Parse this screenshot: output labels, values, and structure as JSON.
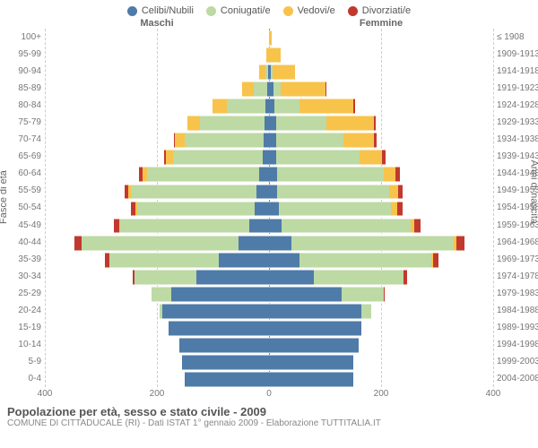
{
  "chart": {
    "type": "population-pyramid",
    "background_color": "#ffffff",
    "grid_color": "#cccccc",
    "xlim": 400,
    "xticks_left": [
      400,
      200,
      0
    ],
    "xticks_right": [
      200,
      400
    ],
    "left_label": "Maschi",
    "right_label": "Femmine",
    "yaxis_left_title": "Fasce di età",
    "yaxis_right_title": "Anni di nascita",
    "legend": [
      {
        "label": "Celibi/Nubili",
        "color": "#4f7ba8"
      },
      {
        "label": "Coniugati/e",
        "color": "#bdd9a4"
      },
      {
        "label": "Vedovi/e",
        "color": "#f7c34b"
      },
      {
        "label": "Divorziati/e",
        "color": "#c1392e"
      }
    ],
    "age_groups": [
      {
        "age": "100+",
        "birth": "≤ 1908",
        "m": {
          "c": 0,
          "co": 0,
          "v": 0,
          "d": 0
        },
        "f": {
          "c": 0,
          "co": 0,
          "v": 4,
          "d": 0
        }
      },
      {
        "age": "95-99",
        "birth": "1909-1913",
        "m": {
          "c": 0,
          "co": 0,
          "v": 5,
          "d": 0
        },
        "f": {
          "c": 0,
          "co": 0,
          "v": 20,
          "d": 0
        }
      },
      {
        "age": "90-94",
        "birth": "1914-1918",
        "m": {
          "c": 2,
          "co": 5,
          "v": 10,
          "d": 0
        },
        "f": {
          "c": 3,
          "co": 3,
          "v": 40,
          "d": 0
        }
      },
      {
        "age": "85-89",
        "birth": "1919-1923",
        "m": {
          "c": 3,
          "co": 25,
          "v": 20,
          "d": 0
        },
        "f": {
          "c": 8,
          "co": 12,
          "v": 80,
          "d": 2
        }
      },
      {
        "age": "80-84",
        "birth": "1924-1928",
        "m": {
          "c": 6,
          "co": 70,
          "v": 25,
          "d": 0
        },
        "f": {
          "c": 10,
          "co": 45,
          "v": 95,
          "d": 3
        }
      },
      {
        "age": "75-79",
        "birth": "1929-1933",
        "m": {
          "c": 8,
          "co": 115,
          "v": 22,
          "d": 0
        },
        "f": {
          "c": 12,
          "co": 90,
          "v": 85,
          "d": 3
        }
      },
      {
        "age": "70-74",
        "birth": "1934-1938",
        "m": {
          "c": 10,
          "co": 140,
          "v": 18,
          "d": 2
        },
        "f": {
          "c": 12,
          "co": 120,
          "v": 55,
          "d": 5
        }
      },
      {
        "age": "65-69",
        "birth": "1939-1943",
        "m": {
          "c": 12,
          "co": 160,
          "v": 12,
          "d": 4
        },
        "f": {
          "c": 12,
          "co": 150,
          "v": 40,
          "d": 6
        }
      },
      {
        "age": "60-64",
        "birth": "1944-1948",
        "m": {
          "c": 18,
          "co": 200,
          "v": 8,
          "d": 6
        },
        "f": {
          "c": 14,
          "co": 190,
          "v": 22,
          "d": 8
        }
      },
      {
        "age": "55-59",
        "birth": "1949-1953",
        "m": {
          "c": 22,
          "co": 225,
          "v": 5,
          "d": 6
        },
        "f": {
          "c": 15,
          "co": 200,
          "v": 15,
          "d": 8
        }
      },
      {
        "age": "50-54",
        "birth": "1954-1958",
        "m": {
          "c": 25,
          "co": 210,
          "v": 3,
          "d": 8
        },
        "f": {
          "c": 18,
          "co": 200,
          "v": 10,
          "d": 10
        }
      },
      {
        "age": "45-49",
        "birth": "1959-1963",
        "m": {
          "c": 35,
          "co": 230,
          "v": 2,
          "d": 10
        },
        "f": {
          "c": 22,
          "co": 230,
          "v": 7,
          "d": 12
        }
      },
      {
        "age": "40-44",
        "birth": "1964-1968",
        "m": {
          "c": 55,
          "co": 280,
          "v": 0,
          "d": 12
        },
        "f": {
          "c": 40,
          "co": 290,
          "v": 5,
          "d": 14
        }
      },
      {
        "age": "35-39",
        "birth": "1969-1973",
        "m": {
          "c": 90,
          "co": 195,
          "v": 0,
          "d": 8
        },
        "f": {
          "c": 55,
          "co": 235,
          "v": 2,
          "d": 10
        }
      },
      {
        "age": "30-34",
        "birth": "1974-1978",
        "m": {
          "c": 130,
          "co": 110,
          "v": 0,
          "d": 4
        },
        "f": {
          "c": 80,
          "co": 160,
          "v": 0,
          "d": 6
        }
      },
      {
        "age": "25-29",
        "birth": "1979-1983",
        "m": {
          "c": 175,
          "co": 35,
          "v": 0,
          "d": 0
        },
        "f": {
          "c": 130,
          "co": 75,
          "v": 0,
          "d": 2
        }
      },
      {
        "age": "20-24",
        "birth": "1984-1988",
        "m": {
          "c": 190,
          "co": 5,
          "v": 0,
          "d": 0
        },
        "f": {
          "c": 165,
          "co": 18,
          "v": 0,
          "d": 0
        }
      },
      {
        "age": "15-19",
        "birth": "1989-1993",
        "m": {
          "c": 180,
          "co": 0,
          "v": 0,
          "d": 0
        },
        "f": {
          "c": 165,
          "co": 0,
          "v": 0,
          "d": 0
        }
      },
      {
        "age": "10-14",
        "birth": "1994-1998",
        "m": {
          "c": 160,
          "co": 0,
          "v": 0,
          "d": 0
        },
        "f": {
          "c": 160,
          "co": 0,
          "v": 0,
          "d": 0
        }
      },
      {
        "age": "5-9",
        "birth": "1999-2003",
        "m": {
          "c": 155,
          "co": 0,
          "v": 0,
          "d": 0
        },
        "f": {
          "c": 150,
          "co": 0,
          "v": 0,
          "d": 0
        }
      },
      {
        "age": "0-4",
        "birth": "2004-2008",
        "m": {
          "c": 150,
          "co": 0,
          "v": 0,
          "d": 0
        },
        "f": {
          "c": 150,
          "co": 0,
          "v": 0,
          "d": 0
        }
      }
    ]
  },
  "title": "Popolazione per età, sesso e stato civile - 2009",
  "subtitle": "COMUNE DI CITTADUCALE (RI) - Dati ISTAT 1° gennaio 2009 - Elaborazione TUTTITALIA.IT"
}
